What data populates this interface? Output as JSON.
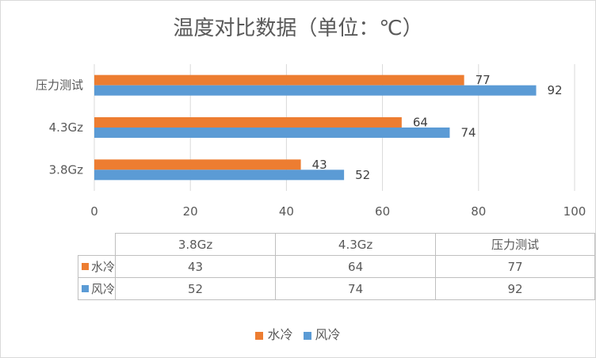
{
  "chart_data": {
    "type": "bar",
    "orientation": "horizontal",
    "title": "温度对比数据（单位：℃）",
    "categories": [
      "3.8Gz",
      "4.3Gz",
      "压力测试"
    ],
    "series": [
      {
        "name": "水冷",
        "values": [
          43,
          64,
          77
        ],
        "color": "#ed7d31"
      },
      {
        "name": "风冷",
        "values": [
          52,
          74,
          92
        ],
        "color": "#5b9bd5"
      }
    ],
    "xlim": [
      0,
      100
    ],
    "xticks": [
      0,
      20,
      40,
      60,
      80,
      100
    ],
    "grid": true,
    "legend_position": "bottom",
    "data_table": true
  }
}
